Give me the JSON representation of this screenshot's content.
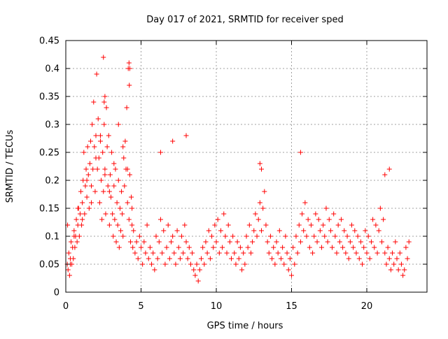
{
  "chart_data": {
    "type": "scatter",
    "title": "Day 017 of 2021, SRMTID for receiver sped",
    "xlabel": "GPS time / hours",
    "ylabel": "SRMTID / TECUs",
    "xlim": [
      0,
      24
    ],
    "ylim": [
      0,
      0.45
    ],
    "xticks": [
      0,
      5,
      10,
      15,
      20
    ],
    "xtick_labels": [
      "0",
      "5",
      "10",
      "15",
      "20"
    ],
    "yticks": [
      0,
      0.05,
      0.1,
      0.15,
      0.2,
      0.25,
      0.3,
      0.35,
      0.4,
      0.45
    ],
    "ytick_labels": [
      "0",
      "0.05",
      "0.1",
      "0.15",
      "0.2",
      "0.25",
      "0.3",
      "0.35",
      "0.4",
      "0.45"
    ],
    "grid": true,
    "marker": "+",
    "color": "#ff0000",
    "series": [
      {
        "name": "SRMTID",
        "x": [
          0.1,
          0.15,
          0.2,
          0.25,
          0.3,
          0.35,
          0.4,
          0.45,
          0.5,
          0.55,
          0.6,
          0.65,
          0.7,
          0.75,
          0.8,
          0.85,
          0.9,
          0.95,
          1.0,
          1.05,
          1.1,
          1.15,
          1.2,
          1.25,
          1.3,
          1.35,
          1.4,
          1.45,
          1.5,
          1.55,
          1.6,
          1.65,
          1.7,
          1.75,
          1.8,
          1.85,
          1.9,
          1.95,
          2.0,
          2.05,
          2.1,
          2.15,
          2.2,
          2.25,
          2.3,
          2.35,
          2.4,
          2.45,
          2.5,
          2.55,
          2.6,
          2.65,
          2.7,
          2.75,
          2.8,
          2.85,
          2.9,
          2.95,
          3.0,
          3.05,
          3.1,
          3.15,
          3.2,
          3.25,
          3.3,
          3.35,
          3.4,
          3.45,
          3.5,
          3.55,
          3.6,
          3.65,
          3.7,
          3.75,
          3.8,
          3.85,
          3.9,
          3.95,
          4.0,
          4.05,
          4.1,
          4.15,
          4.2,
          4.25,
          4.3,
          4.35,
          4.4,
          4.45,
          4.5,
          4.6,
          4.7,
          4.8,
          4.9,
          5.0,
          5.1,
          5.2,
          5.3,
          5.4,
          5.5,
          5.6,
          5.7,
          5.8,
          5.9,
          6.0,
          6.1,
          6.2,
          6.3,
          6.4,
          6.5,
          6.6,
          6.7,
          6.8,
          6.9,
          7.0,
          7.1,
          7.2,
          7.3,
          7.4,
          7.5,
          7.6,
          7.7,
          7.8,
          7.9,
          8.0,
          8.1,
          8.2,
          8.3,
          8.4,
          8.5,
          8.6,
          8.7,
          8.8,
          8.9,
          9.0,
          9.1,
          9.2,
          9.3,
          9.4,
          9.5,
          9.6,
          9.7,
          9.8,
          9.9,
          10.0,
          10.1,
          10.2,
          10.3,
          10.4,
          10.5,
          10.6,
          10.7,
          10.8,
          10.9,
          11.0,
          11.1,
          11.2,
          11.3,
          11.4,
          11.5,
          11.6,
          11.7,
          11.8,
          11.9,
          12.0,
          12.1,
          12.2,
          12.3,
          12.4,
          12.5,
          12.6,
          12.7,
          12.8,
          12.9,
          13.0,
          13.1,
          13.2,
          13.3,
          13.4,
          13.5,
          13.6,
          13.7,
          13.8,
          13.9,
          14.0,
          14.1,
          14.2,
          14.3,
          14.4,
          14.5,
          14.6,
          14.7,
          14.8,
          14.9,
          15.0,
          15.1,
          15.2,
          15.3,
          15.4,
          15.5,
          15.6,
          15.7,
          15.8,
          15.9,
          16.0,
          16.1,
          16.2,
          16.3,
          16.4,
          16.5,
          16.6,
          16.7,
          16.8,
          16.9,
          17.0,
          17.1,
          17.2,
          17.3,
          17.4,
          17.5,
          17.6,
          17.7,
          17.8,
          17.9,
          18.0,
          18.1,
          18.2,
          18.3,
          18.4,
          18.5,
          18.6,
          18.7,
          18.8,
          18.9,
          19.0,
          19.1,
          19.2,
          19.3,
          19.4,
          19.5,
          19.6,
          19.7,
          19.8,
          19.9,
          20.0,
          20.1,
          20.2,
          20.3,
          20.4,
          20.5,
          20.6,
          20.7,
          20.8,
          20.9,
          21.0,
          21.1,
          21.2,
          21.3,
          21.4,
          21.5,
          21.6,
          21.7,
          21.8,
          21.9,
          22.0,
          22.1,
          22.2,
          22.3,
          22.4,
          22.5,
          22.6,
          22.7,
          22.8,
          0.12,
          0.3,
          0.55,
          0.8,
          1.1,
          1.4,
          1.7,
          2.0,
          2.3,
          2.6,
          2.9,
          3.2,
          3.5,
          3.8,
          4.1,
          4.4,
          2.5,
          2.6,
          2.55,
          4.2,
          4.25,
          4.22,
          6.3,
          7.1,
          8.0,
          12.9,
          13.0,
          15.6,
          21.2,
          21.5
        ],
        "y": [
          0.05,
          0.04,
          0.07,
          0.03,
          0.06,
          0.09,
          0.05,
          0.08,
          0.06,
          0.11,
          0.08,
          0.1,
          0.13,
          0.09,
          0.12,
          0.15,
          0.1,
          0.14,
          0.18,
          0.12,
          0.16,
          0.2,
          0.25,
          0.14,
          0.19,
          0.22,
          0.17,
          0.26,
          0.21,
          0.15,
          0.23,
          0.27,
          0.19,
          0.3,
          0.22,
          0.34,
          0.26,
          0.18,
          0.28,
          0.39,
          0.22,
          0.31,
          0.24,
          0.16,
          0.27,
          0.2,
          0.13,
          0.25,
          0.18,
          0.3,
          0.22,
          0.14,
          0.33,
          0.26,
          0.19,
          0.28,
          0.12,
          0.21,
          0.17,
          0.25,
          0.14,
          0.1,
          0.19,
          0.13,
          0.22,
          0.09,
          0.16,
          0.12,
          0.2,
          0.08,
          0.15,
          0.11,
          0.18,
          0.14,
          0.1,
          0.24,
          0.19,
          0.27,
          0.22,
          0.33,
          0.16,
          0.4,
          0.13,
          0.21,
          0.09,
          0.17,
          0.12,
          0.08,
          0.11,
          0.07,
          0.09,
          0.06,
          0.1,
          0.08,
          0.05,
          0.09,
          0.07,
          0.12,
          0.06,
          0.08,
          0.05,
          0.07,
          0.04,
          0.1,
          0.06,
          0.09,
          0.13,
          0.07,
          0.11,
          0.05,
          0.08,
          0.12,
          0.06,
          0.09,
          0.1,
          0.07,
          0.05,
          0.11,
          0.08,
          0.06,
          0.1,
          0.07,
          0.12,
          0.09,
          0.06,
          0.08,
          0.05,
          0.07,
          0.04,
          0.03,
          0.05,
          0.02,
          0.04,
          0.06,
          0.08,
          0.05,
          0.09,
          0.07,
          0.11,
          0.06,
          0.1,
          0.08,
          0.12,
          0.09,
          0.13,
          0.07,
          0.11,
          0.08,
          0.14,
          0.1,
          0.07,
          0.12,
          0.09,
          0.06,
          0.1,
          0.07,
          0.05,
          0.09,
          0.06,
          0.08,
          0.04,
          0.07,
          0.05,
          0.1,
          0.08,
          0.12,
          0.07,
          0.09,
          0.11,
          0.14,
          0.1,
          0.13,
          0.16,
          0.11,
          0.15,
          0.18,
          0.12,
          0.09,
          0.07,
          0.1,
          0.06,
          0.08,
          0.05,
          0.09,
          0.07,
          0.11,
          0.06,
          0.08,
          0.05,
          0.1,
          0.07,
          0.04,
          0.06,
          0.03,
          0.08,
          0.05,
          0.1,
          0.07,
          0.12,
          0.09,
          0.14,
          0.11,
          0.16,
          0.1,
          0.13,
          0.08,
          0.12,
          0.07,
          0.1,
          0.14,
          0.09,
          0.13,
          0.11,
          0.08,
          0.12,
          0.1,
          0.15,
          0.09,
          0.13,
          0.11,
          0.08,
          0.14,
          0.1,
          0.07,
          0.12,
          0.09,
          0.13,
          0.08,
          0.11,
          0.07,
          0.1,
          0.06,
          0.09,
          0.12,
          0.08,
          0.11,
          0.07,
          0.1,
          0.06,
          0.09,
          0.05,
          0.08,
          0.11,
          0.07,
          0.1,
          0.06,
          0.09,
          0.13,
          0.08,
          0.12,
          0.07,
          0.11,
          0.15,
          0.09,
          0.13,
          0.07,
          0.05,
          0.08,
          0.06,
          0.04,
          0.07,
          0.05,
          0.09,
          0.06,
          0.04,
          0.07,
          0.05,
          0.03,
          0.04,
          0.08,
          0.06,
          0.09,
          0.12,
          0.05,
          0.1,
          0.15,
          0.13,
          0.2,
          0.16,
          0.24,
          0.28,
          0.21,
          0.18,
          0.23,
          0.3,
          0.26,
          0.22,
          0.15,
          0.42,
          0.35,
          0.34,
          0.41,
          0.4,
          0.37,
          0.25,
          0.27,
          0.28,
          0.23,
          0.22,
          0.25,
          0.21,
          0.22
        ]
      }
    ]
  }
}
